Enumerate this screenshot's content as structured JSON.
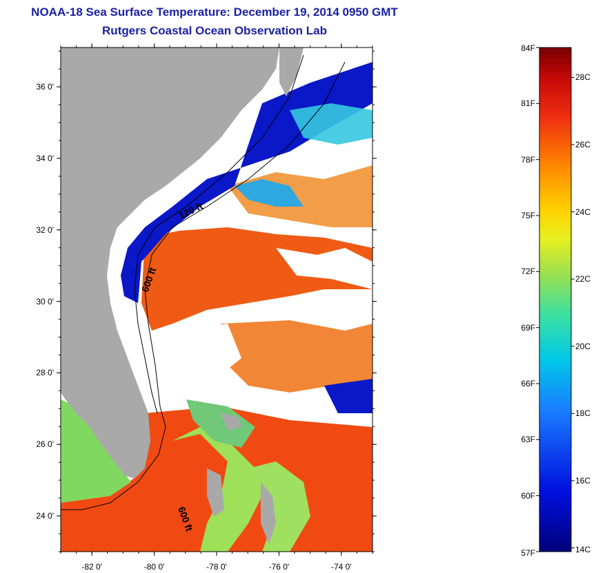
{
  "title": {
    "line1": "NOAA-18 Sea Surface Temperature:  December 19, 2014 0950 GMT",
    "line2": "Rutgers Coastal Ocean Observation Lab"
  },
  "map": {
    "lat_ticks": [
      {
        "value": 36,
        "label": "36 0'"
      },
      {
        "value": 34,
        "label": "34 0'"
      },
      {
        "value": 32,
        "label": "32 0'"
      },
      {
        "value": 30,
        "label": "30 0'"
      },
      {
        "value": 28,
        "label": "28 0'"
      },
      {
        "value": 26,
        "label": "26 0'"
      },
      {
        "value": 24,
        "label": "24 0'"
      }
    ],
    "lon_ticks": [
      {
        "value": -82,
        "label": "-82 0'"
      },
      {
        "value": -80,
        "label": "-80 0'"
      },
      {
        "value": -78,
        "label": "-78 0'"
      },
      {
        "value": -76,
        "label": "-76 0'"
      },
      {
        "value": -74,
        "label": "-74 0'"
      }
    ],
    "lat_range": [
      23,
      37.1
    ],
    "lon_range": [
      -83,
      -73
    ],
    "depth_labels": [
      "120 ft",
      "600 ft",
      "600 ft"
    ],
    "colors": {
      "land": "#a9a9a9",
      "cloud": "#ffffff",
      "warm": "#f04a12",
      "cold": "#0a18c8"
    }
  },
  "colorbar": {
    "f_ticks": [
      {
        "value": 84,
        "label": "84F"
      },
      {
        "value": 81,
        "label": "81F"
      },
      {
        "value": 78,
        "label": "78F"
      },
      {
        "value": 75,
        "label": "75F"
      },
      {
        "value": 72,
        "label": "72F"
      },
      {
        "value": 69,
        "label": "69F"
      },
      {
        "value": 66,
        "label": "66F"
      },
      {
        "value": 63,
        "label": "63F"
      },
      {
        "value": 60,
        "label": "60F"
      },
      {
        "value": 57,
        "label": "57F"
      }
    ],
    "c_ticks": [
      {
        "value": 28,
        "label": "28C"
      },
      {
        "value": 26,
        "label": "26C"
      },
      {
        "value": 24,
        "label": "24C"
      },
      {
        "value": 22,
        "label": "22C"
      },
      {
        "value": 20,
        "label": "20C"
      },
      {
        "value": 18,
        "label": "18C"
      },
      {
        "value": 16,
        "label": "16C"
      },
      {
        "value": 14,
        "label": "14C"
      }
    ],
    "range_f": [
      57,
      84
    ]
  }
}
